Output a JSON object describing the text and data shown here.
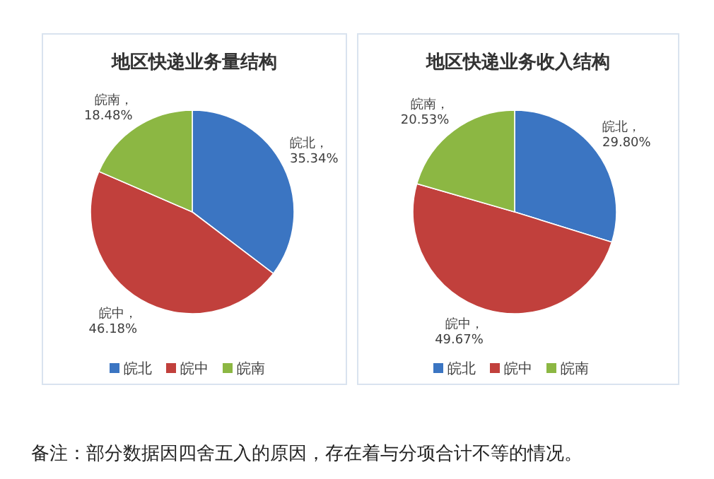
{
  "chart_data": [
    {
      "type": "pie",
      "title": "地区快递业务量结构",
      "categories": [
        "皖北",
        "皖中",
        "皖南"
      ],
      "values": [
        35.34,
        46.18,
        18.48
      ],
      "colors": [
        "#3b75c2",
        "#c1403c",
        "#8cb743"
      ],
      "value_labels": [
        "皖北，35.34%",
        "皖中，46.18%",
        "皖南，18.48%"
      ],
      "legend": "bottom"
    },
    {
      "type": "pie",
      "title": "地区快递业务收入结构",
      "categories": [
        "皖北",
        "皖中",
        "皖南"
      ],
      "values": [
        29.8,
        49.67,
        20.53
      ],
      "colors": [
        "#3b75c2",
        "#c1403c",
        "#8cb743"
      ],
      "value_labels": [
        "皖北，29.80%",
        "皖中，49.67%",
        "皖南，20.53%"
      ],
      "legend": "bottom",
      "annotations": [
        "备注：部分数据因四舍五入的原因，存在着与分项合计不等的情况。"
      ]
    }
  ]
}
